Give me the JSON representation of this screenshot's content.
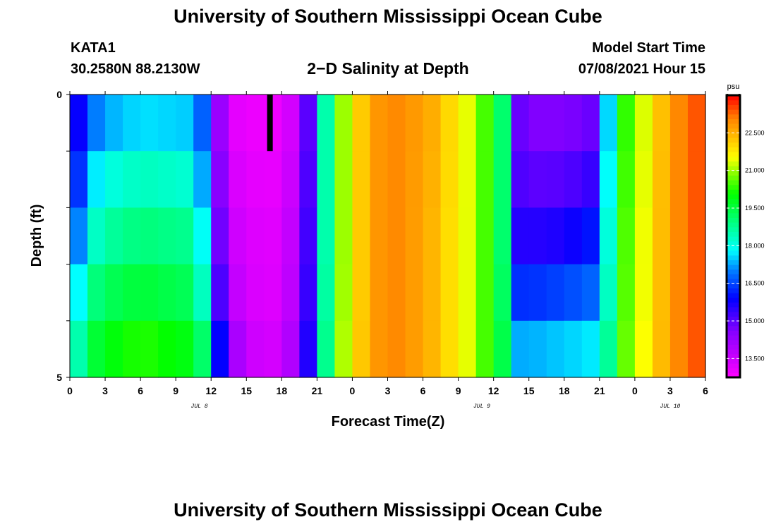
{
  "header": {
    "title": "University of Southern Mississippi Ocean Cube",
    "station": "KATA1",
    "coords": "30.2580N  88.2130W",
    "subtitle": "2−D Salinity at Depth",
    "model_label": "Model Start Time",
    "model_time": "07/08/2021 Hour 15"
  },
  "footer": {
    "title": "University of Southern Mississippi Ocean Cube"
  },
  "chart_data": {
    "type": "heatmap",
    "title": "2-D Salinity at Depth",
    "xlabel": "Forecast Time(Z)",
    "ylabel": "Depth (ft)",
    "x_tick_labels": [
      "0",
      "3",
      "6",
      "9",
      "12",
      "15",
      "18",
      "21",
      "0",
      "3",
      "6",
      "9",
      "12",
      "15",
      "18",
      "21",
      "0",
      "3",
      "6"
    ],
    "x_range_hours": [
      0,
      54
    ],
    "date_labels": [
      {
        "text": "JUL 8",
        "hour": 11
      },
      {
        "text": "JUL 9",
        "hour": 35
      },
      {
        "text": "JUL 10",
        "hour": 51
      }
    ],
    "y_tick_labels": [
      "0",
      "5"
    ],
    "y_range": [
      0,
      5
    ],
    "depth_layers": [
      0,
      1,
      2,
      3,
      4,
      5
    ],
    "colorbar": {
      "unit": "psu",
      "min": 12.75,
      "max": 24.0,
      "labels": [
        "22.500",
        "21.000",
        "19.500",
        "18.000",
        "16.500",
        "15.000",
        "13.500"
      ],
      "label_values": [
        22.5,
        21.0,
        19.5,
        18.0,
        16.5,
        15.0,
        13.5
      ]
    },
    "keypoint_hours": [
      0,
      1,
      2.5,
      6,
      10,
      11.5,
      12.5,
      13.5,
      16,
      18,
      19.8,
      20.5,
      21.5,
      22.5,
      24,
      26,
      28,
      31,
      34,
      36,
      36.7,
      37,
      37.5,
      38.2,
      39,
      42,
      44.5,
      45.5,
      46,
      47,
      49,
      51,
      54
    ],
    "salinity_profiles": [
      [
        15.2,
        15.8,
        16.8,
        17.3,
        17.2,
        16.6,
        14.6,
        13.2,
        13.0,
        13.0,
        14.0,
        15.6,
        18.0,
        20.2,
        21.8,
        22.8,
        23.0,
        22.5,
        21.3,
        20.0,
        19.3,
        18.2,
        16.8,
        14.8,
        14.5,
        14.5,
        14.8,
        16.5,
        18.5,
        20.2,
        21.5,
        22.8,
        23.6
      ],
      [
        15.6,
        16.2,
        17.6,
        18.0,
        17.8,
        16.6,
        14.6,
        13.2,
        13.0,
        13.0,
        14.0,
        15.6,
        18.0,
        20.2,
        21.8,
        22.8,
        23.0,
        22.5,
        21.3,
        20.0,
        19.3,
        18.2,
        16.8,
        15.0,
        14.8,
        14.8,
        15.0,
        16.8,
        18.5,
        20.2,
        21.5,
        22.8,
        23.6
      ],
      [
        16.2,
        16.8,
        18.3,
        18.8,
        18.6,
        17.6,
        15.2,
        13.6,
        13.2,
        13.2,
        14.3,
        15.8,
        18.0,
        20.2,
        21.8,
        22.8,
        23.0,
        22.4,
        21.3,
        20.0,
        19.3,
        18.2,
        16.8,
        15.3,
        15.2,
        15.3,
        15.8,
        17.3,
        18.8,
        20.4,
        21.6,
        22.8,
        23.6
      ],
      [
        17.0,
        17.6,
        18.8,
        19.2,
        19.0,
        17.8,
        15.2,
        13.6,
        13.2,
        13.2,
        14.3,
        15.8,
        18.0,
        20.2,
        21.8,
        22.8,
        23.0,
        22.4,
        21.3,
        20.0,
        19.3,
        18.2,
        16.8,
        15.8,
        15.8,
        16.0,
        16.4,
        17.6,
        18.8,
        20.4,
        21.6,
        22.8,
        23.6
      ],
      [
        17.8,
        18.3,
        19.6,
        20.0,
        19.6,
        18.6,
        16.0,
        14.0,
        13.3,
        13.3,
        14.5,
        16.0,
        18.2,
        20.3,
        21.8,
        22.8,
        23.0,
        22.4,
        21.3,
        20.0,
        19.5,
        18.5,
        17.5,
        16.8,
        16.8,
        17.0,
        17.2,
        18.0,
        19.0,
        20.5,
        21.6,
        22.8,
        23.6
      ],
      [
        18.6,
        19.0,
        20.0,
        20.6,
        20.2,
        19.4,
        16.8,
        14.6,
        13.5,
        13.5,
        14.8,
        16.2,
        18.4,
        20.4,
        21.9,
        22.8,
        23.0,
        22.4,
        21.3,
        20.0,
        19.6,
        19.0,
        18.5,
        17.8,
        17.8,
        18.0,
        18.2,
        18.6,
        19.3,
        20.6,
        21.7,
        22.8,
        23.6
      ]
    ],
    "marker": {
      "hour": 17,
      "depth_from": 0,
      "depth_to": 1
    }
  }
}
